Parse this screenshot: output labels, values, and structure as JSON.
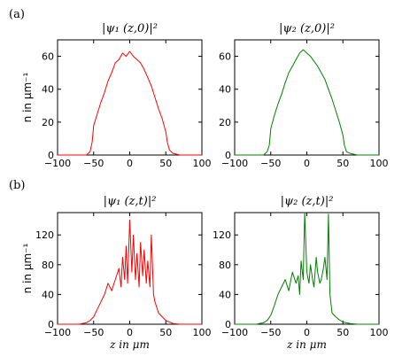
{
  "figure": {
    "panel_labels": [
      "(a)",
      "(b)"
    ]
  },
  "chart_data": [
    {
      "type": "line",
      "title": "|ψ₁ (z,0)|²",
      "xlabel": "",
      "ylabel": "n in μm⁻¹",
      "xlim": [
        -100,
        100
      ],
      "ylim": [
        0,
        70
      ],
      "xticks": [
        -100,
        -50,
        0,
        50,
        100
      ],
      "yticks": [
        0,
        20,
        40,
        60
      ],
      "color": "#ff0000",
      "series": [
        {
          "x": [
            -100,
            -70,
            -60,
            -55,
            -52,
            -50,
            -45,
            -40,
            -35,
            -30,
            -25,
            -20,
            -15,
            -10,
            -5,
            0,
            5,
            10,
            15,
            20,
            25,
            30,
            35,
            40,
            45,
            50,
            52,
            55,
            60,
            70,
            100
          ],
          "y": [
            0,
            0,
            0,
            2,
            8,
            18,
            25,
            32,
            38,
            45,
            50,
            56,
            58,
            62,
            60,
            63,
            60,
            58,
            56,
            52,
            47,
            42,
            35,
            28,
            22,
            14,
            8,
            3,
            1,
            0,
            0
          ]
        }
      ]
    },
    {
      "type": "line",
      "title": "|ψ₂ (z,0)|²",
      "xlabel": "",
      "ylabel": "",
      "xlim": [
        -100,
        100
      ],
      "ylim": [
        0,
        70
      ],
      "xticks": [
        -100,
        -50,
        0,
        50,
        100
      ],
      "yticks": [
        0,
        20,
        40,
        60
      ],
      "color": "#008000",
      "series": [
        {
          "x": [
            -100,
            -70,
            -60,
            -55,
            -52,
            -50,
            -45,
            -40,
            -35,
            -30,
            -25,
            -20,
            -15,
            -10,
            -5,
            0,
            5,
            10,
            15,
            20,
            25,
            30,
            35,
            40,
            45,
            50,
            52,
            55,
            60,
            70,
            100
          ],
          "y": [
            0,
            0,
            0,
            2,
            6,
            16,
            24,
            31,
            37,
            44,
            50,
            54,
            58,
            62,
            64,
            62,
            60,
            57,
            54,
            50,
            46,
            40,
            34,
            27,
            20,
            12,
            6,
            2,
            1,
            0,
            0
          ]
        }
      ]
    },
    {
      "type": "line",
      "title": "|ψ₁ (z,t)|²",
      "xlabel": "z in μm",
      "ylabel": "n in μm⁻¹",
      "xlim": [
        -100,
        100
      ],
      "ylim": [
        0,
        150
      ],
      "xticks": [
        -100,
        -50,
        0,
        50,
        100
      ],
      "yticks": [
        0,
        40,
        80,
        120
      ],
      "color": "#ff0000",
      "series": [
        {
          "x": [
            -100,
            -80,
            -70,
            -60,
            -55,
            -50,
            -45,
            -40,
            -35,
            -30,
            -25,
            -20,
            -15,
            -12,
            -10,
            -7,
            -5,
            -3,
            0,
            3,
            5,
            8,
            10,
            13,
            15,
            18,
            20,
            23,
            25,
            28,
            30,
            33,
            35,
            40,
            45,
            50,
            55,
            60,
            70,
            80,
            100
          ],
          "y": [
            0,
            0,
            0,
            2,
            5,
            10,
            20,
            30,
            40,
            55,
            45,
            60,
            75,
            50,
            90,
            60,
            105,
            55,
            140,
            70,
            120,
            60,
            95,
            50,
            110,
            65,
            100,
            55,
            85,
            50,
            120,
            40,
            30,
            15,
            10,
            5,
            3,
            1,
            0,
            0,
            0
          ]
        }
      ]
    },
    {
      "type": "line",
      "title": "|ψ₂ (z,t)|²",
      "xlabel": "z in μm",
      "ylabel": "",
      "xlim": [
        -100,
        100
      ],
      "ylim": [
        0,
        150
      ],
      "xticks": [
        -100,
        -50,
        0,
        50,
        100
      ],
      "yticks": [
        0,
        40,
        80,
        120
      ],
      "color": "#008000",
      "series": [
        {
          "x": [
            -100,
            -80,
            -70,
            -60,
            -55,
            -50,
            -45,
            -40,
            -35,
            -30,
            -25,
            -20,
            -15,
            -12,
            -10,
            -8,
            -5,
            -3,
            0,
            3,
            5,
            8,
            10,
            13,
            15,
            18,
            20,
            23,
            25,
            28,
            30,
            32,
            35,
            40,
            45,
            50,
            60,
            70,
            80,
            100
          ],
          "y": [
            0,
            0,
            0,
            2,
            5,
            12,
            25,
            40,
            50,
            60,
            45,
            70,
            55,
            65,
            40,
            85,
            60,
            150,
            70,
            55,
            80,
            60,
            50,
            90,
            70,
            55,
            60,
            75,
            90,
            60,
            148,
            40,
            15,
            10,
            6,
            3,
            1,
            0,
            0,
            0
          ]
        }
      ]
    }
  ]
}
